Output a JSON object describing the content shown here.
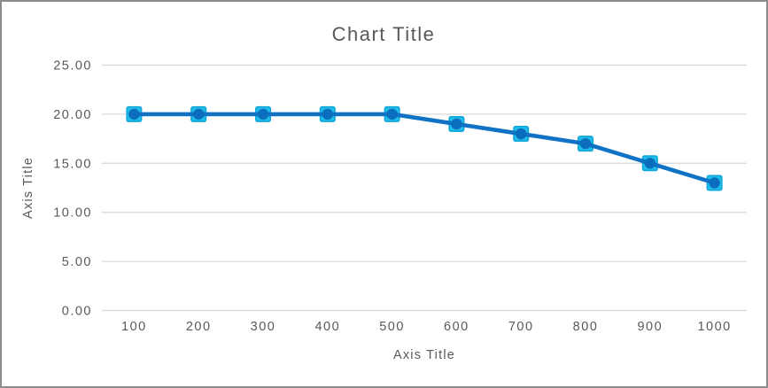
{
  "window": {
    "background": "#FFFFFF",
    "border_color": "#8C8C8C"
  },
  "chart_data": {
    "type": "line",
    "title": "Chart Title",
    "xlabel": "Axis Title",
    "ylabel": "Axis Title",
    "categories": [
      "100",
      "200",
      "300",
      "400",
      "500",
      "600",
      "700",
      "800",
      "900",
      "1000"
    ],
    "values": [
      20,
      20,
      20,
      20,
      20,
      19,
      18,
      17,
      15,
      13
    ],
    "ylim": [
      0,
      25
    ],
    "yticks": [
      0,
      5,
      10,
      15,
      20,
      25
    ],
    "ytick_labels": [
      "0.00",
      "5.00",
      "10.00",
      "15.00",
      "20.00",
      "25.00"
    ],
    "grid": "horizontal",
    "legend": "none",
    "colors": {
      "line": "#0F72C4",
      "marker_square_fill": "#1FBDE8",
      "marker_square_stroke": "#0EA5D8",
      "marker_circle": "#0B6DBE",
      "gridline": "#D9D9D9",
      "text": "#595959",
      "frame_border": "#8C8C8C",
      "background": "#FFFFFF"
    }
  }
}
